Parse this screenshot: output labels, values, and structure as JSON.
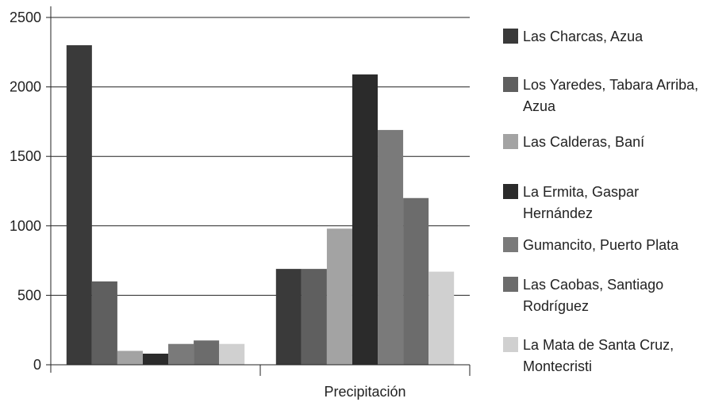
{
  "chart_data": {
    "type": "bar",
    "categories": [
      "",
      "Precipitación"
    ],
    "xlabel": "",
    "ylabel": "",
    "ylim": [
      0,
      2500
    ],
    "yticks": [
      0,
      500,
      1000,
      1500,
      2000,
      2500
    ],
    "grid": true,
    "legend_position": "right",
    "series": [
      {
        "name": "Las Charcas, Azua",
        "color": "#3a3a3a",
        "values": [
          2300,
          690
        ]
      },
      {
        "name": "Los Yaredes, Tabara Arriba, Azua",
        "color": "#5f5f5f",
        "values": [
          600,
          690
        ]
      },
      {
        "name": "Las Calderas, Baní",
        "color": "#a3a3a3",
        "values": [
          100,
          980
        ]
      },
      {
        "name": "La Ermita, Gaspar Hernández",
        "color": "#2b2b2b",
        "values": [
          80,
          2090
        ]
      },
      {
        "name": "Gumancito, Puerto Plata",
        "color": "#7a7a7a",
        "values": [
          150,
          1690
        ]
      },
      {
        "name": "Las Caobas, Santiago Rodríguez",
        "color": "#6c6c6c",
        "values": [
          175,
          1200
        ]
      },
      {
        "name": "La Mata de Santa Cruz, Montecristi",
        "color": "#d0d0d0",
        "values": [
          150,
          670
        ]
      }
    ]
  }
}
